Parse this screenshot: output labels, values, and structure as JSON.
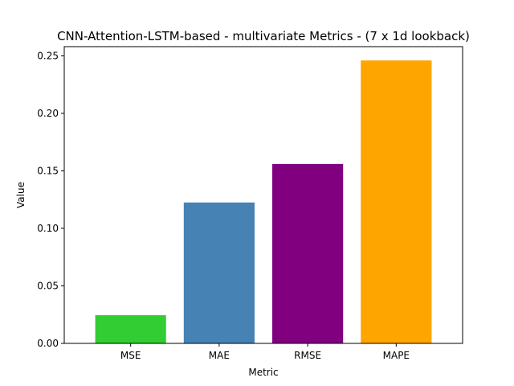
{
  "chart_data": {
    "type": "bar",
    "title": "CNN-Attention-LSTM-based - multivariate Metrics - (7 x 1d lookback)",
    "xlabel": "Metric",
    "ylabel": "Value",
    "categories": [
      "MSE",
      "MAE",
      "RMSE",
      "MAPE"
    ],
    "values": [
      0.0245,
      0.1225,
      0.156,
      0.246
    ],
    "colors": [
      "#32cd32",
      "#4682b4",
      "#800080",
      "#ffa500"
    ],
    "ylim": [
      0,
      0.258
    ],
    "yticks": [
      0.0,
      0.05,
      0.1,
      0.15,
      0.2,
      0.25
    ],
    "ytick_labels": [
      "0.00",
      "0.05",
      "0.10",
      "0.15",
      "0.20",
      "0.25"
    ],
    "grid": false,
    "legend": "none"
  }
}
